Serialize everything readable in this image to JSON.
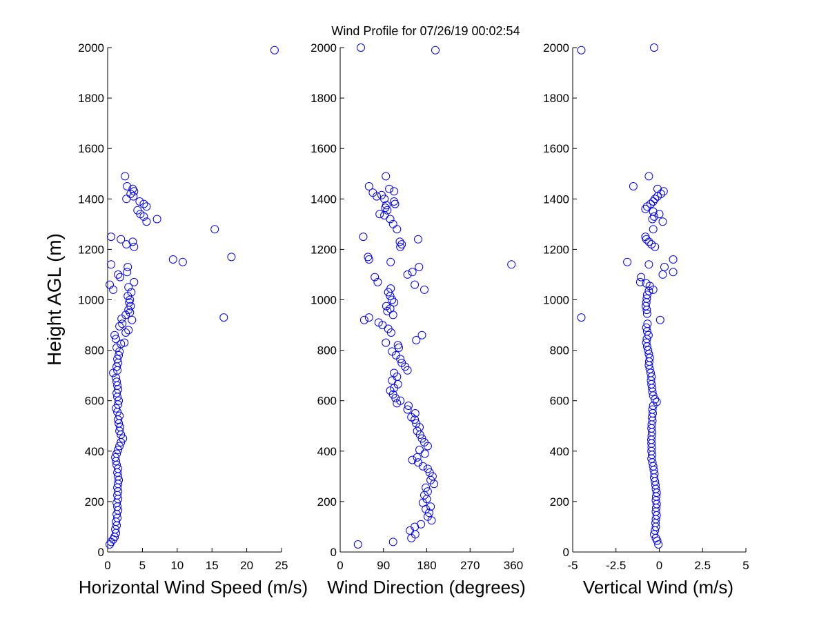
{
  "figure": {
    "title": "Wind Profile for  07/26/19 00:02:54",
    "ylabel": "Height AGL (m)",
    "marker_color": "#0000ff",
    "marker": "open-circle"
  },
  "chart_data": [
    {
      "type": "scatter",
      "xlabel": "Horizontal Wind Speed (m/s)",
      "ylabel": "Height AGL (m)",
      "xlim": [
        0,
        25
      ],
      "ylim": [
        0,
        2000
      ],
      "xticks": [
        "0",
        "5",
        "10",
        "15",
        "20",
        "25"
      ],
      "yticks": [
        "0",
        "200",
        "400",
        "600",
        "800",
        "1000",
        "1200",
        "1400",
        "1600",
        "1800",
        "2000"
      ],
      "grid": false,
      "points": [
        [
          0.3,
          30
        ],
        [
          0.5,
          40
        ],
        [
          0.8,
          50
        ],
        [
          1.0,
          60
        ],
        [
          1.2,
          75
        ],
        [
          1.1,
          90
        ],
        [
          1.3,
          105
        ],
        [
          1.2,
          120
        ],
        [
          1.4,
          135
        ],
        [
          1.3,
          150
        ],
        [
          1.5,
          165
        ],
        [
          1.4,
          180
        ],
        [
          1.3,
          195
        ],
        [
          1.5,
          210
        ],
        [
          1.4,
          225
        ],
        [
          1.5,
          240
        ],
        [
          1.4,
          255
        ],
        [
          1.5,
          270
        ],
        [
          1.6,
          285
        ],
        [
          1.5,
          300
        ],
        [
          1.4,
          315
        ],
        [
          1.5,
          330
        ],
        [
          1.3,
          345
        ],
        [
          1.2,
          360
        ],
        [
          1.1,
          375
        ],
        [
          1.3,
          390
        ],
        [
          1.5,
          405
        ],
        [
          1.7,
          420
        ],
        [
          1.9,
          435
        ],
        [
          2.2,
          450
        ],
        [
          1.9,
          465
        ],
        [
          1.7,
          480
        ],
        [
          1.8,
          495
        ],
        [
          1.6,
          510
        ],
        [
          1.5,
          525
        ],
        [
          1.7,
          540
        ],
        [
          1.4,
          555
        ],
        [
          1.2,
          570
        ],
        [
          1.5,
          585
        ],
        [
          1.6,
          600
        ],
        [
          1.4,
          615
        ],
        [
          1.3,
          630
        ],
        [
          1.5,
          645
        ],
        [
          1.4,
          660
        ],
        [
          1.3,
          675
        ],
        [
          1.2,
          690
        ],
        [
          0.8,
          710
        ],
        [
          1.4,
          720
        ],
        [
          1.3,
          735
        ],
        [
          1.5,
          750
        ],
        [
          1.4,
          765
        ],
        [
          1.6,
          780
        ],
        [
          1.7,
          795
        ],
        [
          1.3,
          810
        ],
        [
          1.9,
          825
        ],
        [
          2.4,
          830
        ],
        [
          1.2,
          845
        ],
        [
          1.0,
          860
        ],
        [
          2.6,
          870
        ],
        [
          3.0,
          880
        ],
        [
          1.7,
          895
        ],
        [
          2.1,
          905
        ],
        [
          3.5,
          920
        ],
        [
          2.0,
          925
        ],
        [
          2.6,
          940
        ],
        [
          3.2,
          950
        ],
        [
          3.0,
          960
        ],
        [
          3.3,
          975
        ],
        [
          3.1,
          990
        ],
        [
          3.2,
          1000
        ],
        [
          2.9,
          1015
        ],
        [
          3.4,
          1030
        ],
        [
          3.0,
          1050
        ],
        [
          0.8,
          1040
        ],
        [
          0.3,
          1060
        ],
        [
          3.8,
          1070
        ],
        [
          1.8,
          1090
        ],
        [
          1.5,
          1100
        ],
        [
          2.8,
          1110
        ],
        [
          2.9,
          1130
        ],
        [
          0.5,
          1140
        ],
        [
          10.8,
          1150
        ],
        [
          9.4,
          1160
        ],
        [
          17.8,
          1170
        ],
        [
          3.8,
          1210
        ],
        [
          2.7,
          1220
        ],
        [
          3.6,
          1230
        ],
        [
          1.9,
          1240
        ],
        [
          0.5,
          1250
        ],
        [
          15.4,
          1280
        ],
        [
          5.6,
          1310
        ],
        [
          7.1,
          1320
        ],
        [
          5.2,
          1330
        ],
        [
          4.7,
          1340
        ],
        [
          4.3,
          1355
        ],
        [
          5.6,
          1370
        ],
        [
          5.2,
          1380
        ],
        [
          4.6,
          1390
        ],
        [
          2.7,
          1400
        ],
        [
          3.7,
          1410
        ],
        [
          3.3,
          1420
        ],
        [
          3.8,
          1430
        ],
        [
          3.6,
          1440
        ],
        [
          2.8,
          1450
        ],
        [
          2.5,
          1490
        ],
        [
          16.7,
          930
        ],
        [
          24.0,
          1990
        ]
      ]
    },
    {
      "type": "scatter",
      "xlabel": "Wind Direction (degrees)",
      "ylabel": "",
      "xlim": [
        0,
        360
      ],
      "ylim": [
        0,
        2000
      ],
      "xticks": [
        "0",
        "90",
        "180",
        "270",
        "360"
      ],
      "yticks": [
        "0",
        "200",
        "400",
        "600",
        "800",
        "1000",
        "1200",
        "1400",
        "1600",
        "1800",
        "2000"
      ],
      "grid": false,
      "points": [
        [
          37,
          30
        ],
        [
          110,
          40
        ],
        [
          148,
          55
        ],
        [
          156,
          70
        ],
        [
          145,
          85
        ],
        [
          155,
          100
        ],
        [
          168,
          110
        ],
        [
          190,
          125
        ],
        [
          182,
          140
        ],
        [
          185,
          155
        ],
        [
          178,
          170
        ],
        [
          188,
          180
        ],
        [
          172,
          195
        ],
        [
          180,
          210
        ],
        [
          175,
          225
        ],
        [
          182,
          240
        ],
        [
          178,
          255
        ],
        [
          195,
          270
        ],
        [
          188,
          285
        ],
        [
          192,
          300
        ],
        [
          186,
          315
        ],
        [
          182,
          330
        ],
        [
          172,
          340
        ],
        [
          162,
          355
        ],
        [
          150,
          365
        ],
        [
          160,
          375
        ],
        [
          176,
          390
        ],
        [
          165,
          405
        ],
        [
          182,
          420
        ],
        [
          175,
          435
        ],
        [
          170,
          450
        ],
        [
          166,
          465
        ],
        [
          160,
          480
        ],
        [
          165,
          495
        ],
        [
          158,
          510
        ],
        [
          155,
          525
        ],
        [
          148,
          535
        ],
        [
          156,
          550
        ],
        [
          140,
          565
        ],
        [
          142,
          580
        ],
        [
          118,
          590
        ],
        [
          125,
          600
        ],
        [
          115,
          610
        ],
        [
          110,
          625
        ],
        [
          104,
          640
        ],
        [
          112,
          650
        ],
        [
          120,
          665
        ],
        [
          108,
          680
        ],
        [
          118,
          695
        ],
        [
          112,
          710
        ],
        [
          140,
          720
        ],
        [
          135,
          735
        ],
        [
          128,
          750
        ],
        [
          125,
          765
        ],
        [
          116,
          780
        ],
        [
          108,
          795
        ],
        [
          122,
          810
        ],
        [
          120,
          820
        ],
        [
          158,
          840
        ],
        [
          170,
          860
        ],
        [
          95,
          830
        ],
        [
          106,
          870
        ],
        [
          100,
          885
        ],
        [
          88,
          900
        ],
        [
          80,
          910
        ],
        [
          50,
          920
        ],
        [
          60,
          930
        ],
        [
          110,
          940
        ],
        [
          98,
          955
        ],
        [
          104,
          965
        ],
        [
          96,
          975
        ],
        [
          112,
          990
        ],
        [
          108,
          1000
        ],
        [
          104,
          1015
        ],
        [
          100,
          1030
        ],
        [
          105,
          1045
        ],
        [
          175,
          1040
        ],
        [
          155,
          1060
        ],
        [
          78,
          1070
        ],
        [
          72,
          1090
        ],
        [
          140,
          1100
        ],
        [
          150,
          1110
        ],
        [
          164,
          1130
        ],
        [
          356,
          1140
        ],
        [
          105,
          1150
        ],
        [
          60,
          1160
        ],
        [
          58,
          1170
        ],
        [
          125,
          1210
        ],
        [
          128,
          1220
        ],
        [
          124,
          1230
        ],
        [
          162,
          1240
        ],
        [
          48,
          1250
        ],
        [
          118,
          1280
        ],
        [
          110,
          1300
        ],
        [
          104,
          1320
        ],
        [
          82,
          1340
        ],
        [
          92,
          1335
        ],
        [
          98,
          1355
        ],
        [
          94,
          1365
        ],
        [
          96,
          1375
        ],
        [
          114,
          1380
        ],
        [
          112,
          1390
        ],
        [
          92,
          1400
        ],
        [
          76,
          1410
        ],
        [
          86,
          1415
        ],
        [
          68,
          1425
        ],
        [
          112,
          1430
        ],
        [
          102,
          1440
        ],
        [
          60,
          1450
        ],
        [
          95,
          1490
        ],
        [
          43,
          2000
        ],
        [
          198,
          1990
        ]
      ]
    },
    {
      "type": "scatter",
      "xlabel": "Vertical Wind (m/s)",
      "ylabel": "",
      "xlim": [
        -5,
        5
      ],
      "ylim": [
        0,
        2000
      ],
      "xticks": [
        "-5",
        "-2.5",
        "0",
        "2.5",
        "5"
      ],
      "yticks": [
        "0",
        "200",
        "400",
        "600",
        "800",
        "1000",
        "1200",
        "1400",
        "1600",
        "1800",
        "2000"
      ],
      "grid": false,
      "points": [
        [
          -0.05,
          30
        ],
        [
          -0.12,
          45
        ],
        [
          -0.2,
          55
        ],
        [
          -0.3,
          70
        ],
        [
          -0.25,
          85
        ],
        [
          -0.2,
          100
        ],
        [
          -0.22,
          115
        ],
        [
          -0.2,
          130
        ],
        [
          -0.15,
          145
        ],
        [
          -0.2,
          160
        ],
        [
          -0.18,
          175
        ],
        [
          -0.15,
          190
        ],
        [
          -0.2,
          205
        ],
        [
          -0.18,
          220
        ],
        [
          -0.15,
          235
        ],
        [
          -0.2,
          250
        ],
        [
          -0.22,
          265
        ],
        [
          -0.25,
          280
        ],
        [
          -0.3,
          295
        ],
        [
          -0.28,
          310
        ],
        [
          -0.32,
          325
        ],
        [
          -0.35,
          340
        ],
        [
          -0.4,
          355
        ],
        [
          -0.45,
          370
        ],
        [
          -0.42,
          385
        ],
        [
          -0.45,
          400
        ],
        [
          -0.44,
          415
        ],
        [
          -0.45,
          430
        ],
        [
          -0.46,
          445
        ],
        [
          -0.44,
          460
        ],
        [
          -0.42,
          475
        ],
        [
          -0.45,
          490
        ],
        [
          -0.44,
          505
        ],
        [
          -0.4,
          520
        ],
        [
          -0.42,
          535
        ],
        [
          -0.38,
          550
        ],
        [
          -0.4,
          565
        ],
        [
          -0.35,
          580
        ],
        [
          -0.15,
          595
        ],
        [
          -0.25,
          605
        ],
        [
          -0.35,
          620
        ],
        [
          -0.4,
          635
        ],
        [
          -0.42,
          650
        ],
        [
          -0.45,
          665
        ],
        [
          -0.48,
          680
        ],
        [
          -0.45,
          695
        ],
        [
          -0.5,
          710
        ],
        [
          -0.55,
          725
        ],
        [
          -0.6,
          740
        ],
        [
          -0.58,
          755
        ],
        [
          -0.55,
          770
        ],
        [
          -0.6,
          785
        ],
        [
          -0.65,
          800
        ],
        [
          -0.7,
          815
        ],
        [
          -0.75,
          830
        ],
        [
          -0.72,
          845
        ],
        [
          -0.62,
          860
        ],
        [
          -0.7,
          875
        ],
        [
          -0.75,
          890
        ],
        [
          -0.68,
          905
        ],
        [
          0.05,
          920
        ],
        [
          -4.5,
          930
        ],
        [
          -0.7,
          945
        ],
        [
          -0.72,
          960
        ],
        [
          -0.78,
          975
        ],
        [
          -0.75,
          990
        ],
        [
          -0.72,
          1005
        ],
        [
          -0.7,
          1020
        ],
        [
          -0.6,
          1035
        ],
        [
          -0.35,
          1040
        ],
        [
          -0.55,
          1055
        ],
        [
          -0.75,
          1065
        ],
        [
          -1.1,
          1070
        ],
        [
          -1.05,
          1090
        ],
        [
          0.2,
          1100
        ],
        [
          0.8,
          1110
        ],
        [
          0.3,
          1130
        ],
        [
          -0.6,
          1140
        ],
        [
          -1.85,
          1150
        ],
        [
          0.8,
          1160
        ],
        [
          -0.25,
          1210
        ],
        [
          -0.45,
          1220
        ],
        [
          -0.6,
          1230
        ],
        [
          -0.75,
          1240
        ],
        [
          -0.8,
          1250
        ],
        [
          -0.35,
          1280
        ],
        [
          0.2,
          1310
        ],
        [
          -0.4,
          1320
        ],
        [
          -0.3,
          1330
        ],
        [
          0.0,
          1340
        ],
        [
          -0.35,
          1350
        ],
        [
          -0.8,
          1360
        ],
        [
          -0.7,
          1370
        ],
        [
          -0.5,
          1380
        ],
        [
          -0.35,
          1390
        ],
        [
          -0.25,
          1400
        ],
        [
          -0.1,
          1410
        ],
        [
          0.1,
          1420
        ],
        [
          0.25,
          1430
        ],
        [
          -0.1,
          1440
        ],
        [
          -1.5,
          1450
        ],
        [
          -0.6,
          1490
        ],
        [
          -4.5,
          1990
        ],
        [
          -0.3,
          2000
        ]
      ]
    }
  ]
}
